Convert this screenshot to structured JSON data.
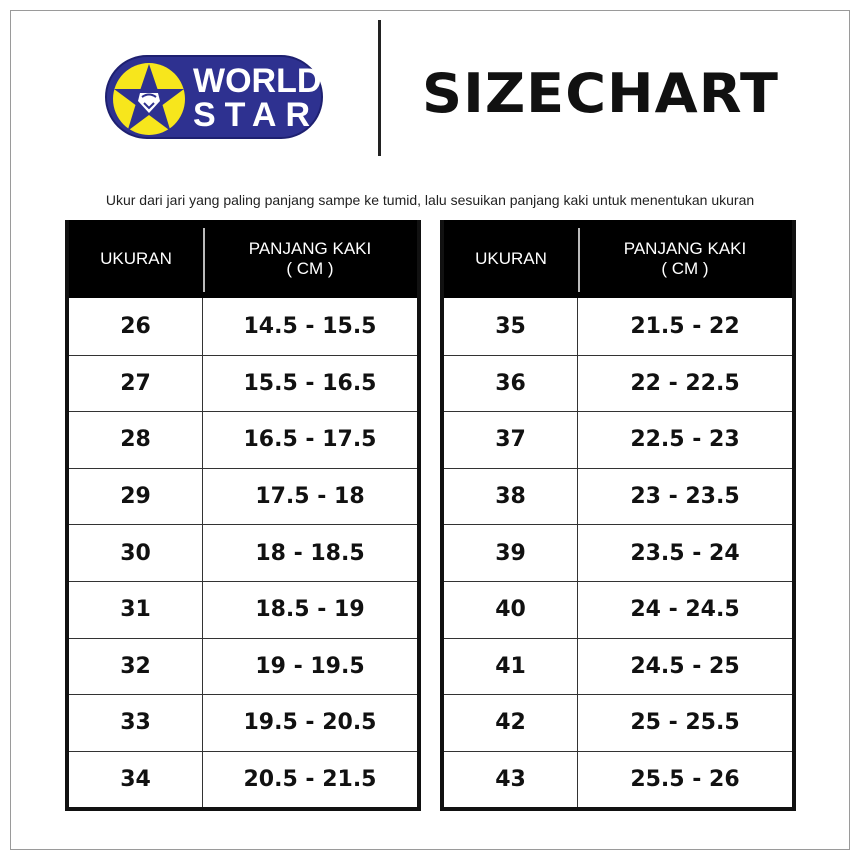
{
  "logo": {
    "line1": "WORLD",
    "line2": "STAR",
    "colors": {
      "blue": "#2e3190",
      "yellow": "#f7e61c"
    }
  },
  "title": "SIZECHART",
  "subtitle": "Ukur dari jari yang paling panjang sampe ke tumid, lalu sesuikan panjang kaki untuk menentukan ukuran",
  "header": {
    "size": "UKURAN",
    "length_line1": "PANJANG KAKI",
    "length_line2": "( CM )"
  },
  "tables": [
    {
      "rows": [
        [
          "26",
          "14.5 - 15.5"
        ],
        [
          "27",
          "15.5 - 16.5"
        ],
        [
          "28",
          "16.5 - 17.5"
        ],
        [
          "29",
          "17.5 - 18"
        ],
        [
          "30",
          "18 - 18.5"
        ],
        [
          "31",
          "18.5 - 19"
        ],
        [
          "32",
          "19 - 19.5"
        ],
        [
          "33",
          "19.5 - 20.5"
        ],
        [
          "34",
          "20.5 - 21.5"
        ]
      ]
    },
    {
      "rows": [
        [
          "35",
          "21.5 - 22"
        ],
        [
          "36",
          "22 - 22.5"
        ],
        [
          "37",
          "22.5 - 23"
        ],
        [
          "38",
          "23 - 23.5"
        ],
        [
          "39",
          "23.5 - 24"
        ],
        [
          "40",
          "24 - 24.5"
        ],
        [
          "41",
          "24.5 - 25"
        ],
        [
          "42",
          "25 - 25.5"
        ],
        [
          "43",
          "25.5 - 26"
        ]
      ]
    }
  ]
}
